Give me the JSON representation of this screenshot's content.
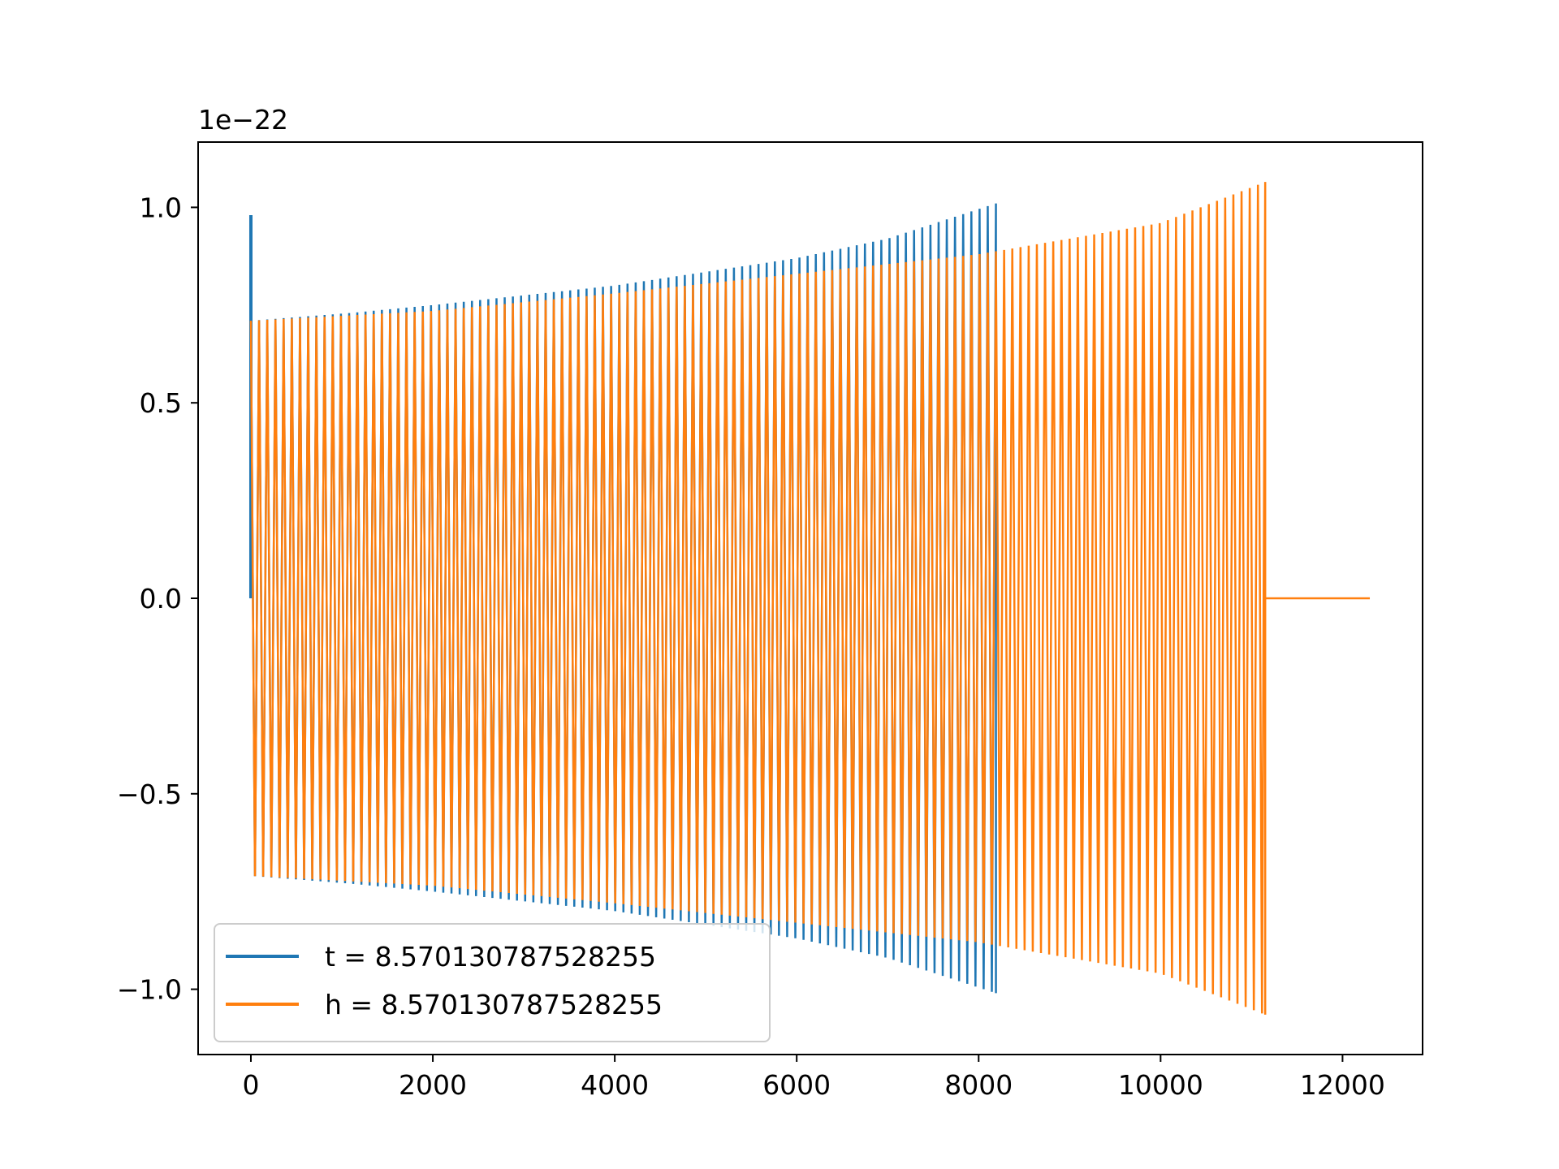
{
  "chart_data": {
    "type": "line",
    "offset_label": "1e−22",
    "xlim": [
      -580,
      12880
    ],
    "ylim": [
      -1.167,
      1.167
    ],
    "xticks": [
      0,
      2000,
      4000,
      6000,
      8000,
      10000,
      12000
    ],
    "xtick_labels": [
      "0",
      "2000",
      "4000",
      "6000",
      "8000",
      "10000",
      "12000"
    ],
    "yticks": [
      -1.0,
      -0.5,
      0.0,
      0.5,
      1.0
    ],
    "ytick_labels": [
      "−1.0",
      "−0.5",
      "0.0",
      "0.5",
      "1.0"
    ],
    "grid": false,
    "legend_position": "lower-left",
    "series": [
      {
        "name": "t = 8.570130787528255",
        "color": "#1f77b4",
        "kind": "oscillation",
        "x_start": 0,
        "x_end": 8190,
        "initial_spike": 0.98,
        "envelope": [
          {
            "x": 0,
            "y": 0.71
          },
          {
            "x": 1100,
            "y": 0.73
          },
          {
            "x": 2000,
            "y": 0.75
          },
          {
            "x": 3000,
            "y": 0.775
          },
          {
            "x": 4000,
            "y": 0.8
          },
          {
            "x": 5000,
            "y": 0.835
          },
          {
            "x": 6000,
            "y": 0.87
          },
          {
            "x": 7000,
            "y": 0.92
          },
          {
            "x": 8190,
            "y": 1.01
          }
        ]
      },
      {
        "name": "h = 8.570130787528255",
        "color": "#ff7f0e",
        "kind": "oscillation",
        "x_start": 0,
        "x_end": 11150,
        "tail_end": 12300,
        "envelope": [
          {
            "x": 0,
            "y": 0.71
          },
          {
            "x": 2000,
            "y": 0.735
          },
          {
            "x": 4000,
            "y": 0.78
          },
          {
            "x": 6000,
            "y": 0.83
          },
          {
            "x": 8000,
            "y": 0.88
          },
          {
            "x": 10000,
            "y": 0.96
          },
          {
            "x": 11150,
            "y": 1.065
          }
        ]
      }
    ]
  }
}
